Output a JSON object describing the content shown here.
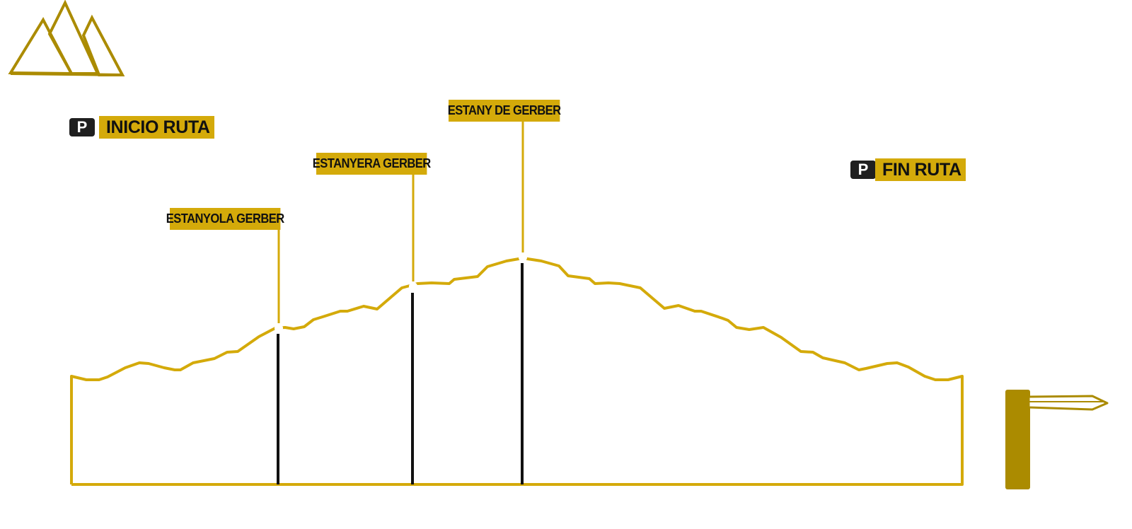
{
  "colors": {
    "accent": "#d4aa0a",
    "dark_gold": "#ab8b00",
    "marker": "#111111",
    "badge": "#1f1f1f"
  },
  "icons": {
    "logo": "mountains-logo-icon",
    "parking": "parking-icon",
    "signpost": "signpost-icon"
  },
  "route": {
    "start_label": "INICIO RUTA",
    "end_label": "FIN RUTA",
    "parking_symbol": "P"
  },
  "waypoints": [
    {
      "name": "ESTANYOLA GERBER",
      "order": 1
    },
    {
      "name": "ESTANYERA GERBER",
      "order": 2
    },
    {
      "name": "ESTANY DE GERBER",
      "order": 3
    }
  ]
}
